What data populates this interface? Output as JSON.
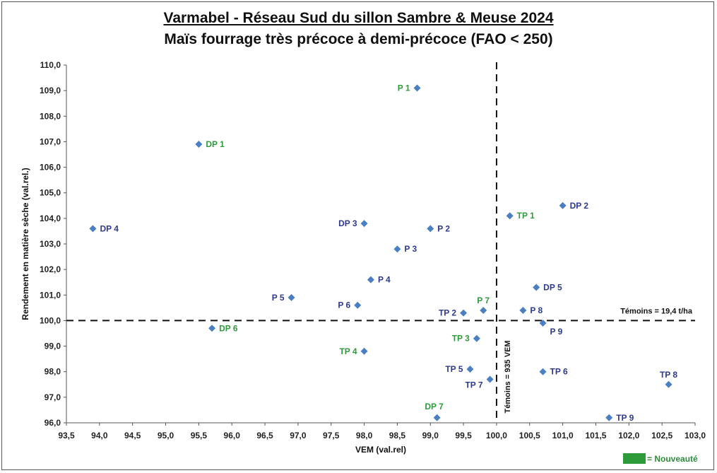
{
  "chart_data": {
    "type": "scatter",
    "title": "Varmabel - Réseau Sud du sillon Sambre & Meuse 2024",
    "subtitle": "Maïs fourrage très précoce à demi-précoce (FAO < 250)",
    "xlabel": "VEM (val.rel)",
    "ylabel": "Rendement en matière sèche (val.rel.)",
    "xlim": [
      93.5,
      103.0
    ],
    "ylim": [
      96.0,
      110.0
    ],
    "x_ticks": [
      "93,5",
      "94,0",
      "94,5",
      "95,0",
      "95,5",
      "96,0",
      "96,5",
      "97,0",
      "97,5",
      "98,0",
      "98,5",
      "99,0",
      "99,5",
      "100,0",
      "100,5",
      "101,0",
      "101,5",
      "102,0",
      "102,5",
      "103,0"
    ],
    "y_ticks": [
      "96,0",
      "97,0",
      "98,0",
      "99,0",
      "100,0",
      "101,0",
      "102,0",
      "103,0",
      "104,0",
      "105,0",
      "106,0",
      "107,0",
      "108,0",
      "109,0",
      "110,0"
    ],
    "grid": false,
    "reference_lines": {
      "x": 100.0,
      "y": 100.0,
      "x_label": "Témoins = 935 VEM",
      "y_label": "Témoins = 19,4 t/ha"
    },
    "marker_color": "#4a7fc1",
    "label_colors": {
      "existing": "#2e3a8c",
      "new": "#2e9b3a"
    },
    "points": [
      {
        "label": "P 1",
        "x": 98.8,
        "y": 109.1,
        "new": true,
        "side": "left"
      },
      {
        "label": "DP 1",
        "x": 95.5,
        "y": 106.9,
        "new": true,
        "side": "right"
      },
      {
        "label": "DP 2",
        "x": 101.0,
        "y": 104.5,
        "new": false,
        "side": "right"
      },
      {
        "label": "TP 1",
        "x": 100.2,
        "y": 104.1,
        "new": true,
        "side": "right"
      },
      {
        "label": "DP 4",
        "x": 93.9,
        "y": 103.6,
        "new": false,
        "side": "right"
      },
      {
        "label": "DP 3",
        "x": 98.0,
        "y": 103.8,
        "new": false,
        "side": "left"
      },
      {
        "label": "P 2",
        "x": 99.0,
        "y": 103.6,
        "new": false,
        "side": "right"
      },
      {
        "label": "P 3",
        "x": 98.5,
        "y": 102.8,
        "new": false,
        "side": "right"
      },
      {
        "label": "P 4",
        "x": 98.1,
        "y": 101.6,
        "new": false,
        "side": "right"
      },
      {
        "label": "DP 5",
        "x": 100.6,
        "y": 101.3,
        "new": false,
        "side": "right"
      },
      {
        "label": "P 5",
        "x": 96.9,
        "y": 100.9,
        "new": false,
        "side": "left"
      },
      {
        "label": "P 6",
        "x": 97.9,
        "y": 100.6,
        "new": false,
        "side": "left"
      },
      {
        "label": "P 7",
        "x": 99.8,
        "y": 100.4,
        "new": true,
        "side": "above"
      },
      {
        "label": "TP 2",
        "x": 99.5,
        "y": 100.3,
        "new": false,
        "side": "left"
      },
      {
        "label": "P 8",
        "x": 100.4,
        "y": 100.4,
        "new": false,
        "side": "right"
      },
      {
        "label": "P 9",
        "x": 100.7,
        "y": 99.9,
        "new": false,
        "side": "belowright"
      },
      {
        "label": "DP 6",
        "x": 95.7,
        "y": 99.7,
        "new": true,
        "side": "right"
      },
      {
        "label": "TP 3",
        "x": 99.7,
        "y": 99.3,
        "new": true,
        "side": "left"
      },
      {
        "label": "TP 4",
        "x": 98.0,
        "y": 98.8,
        "new": true,
        "side": "left"
      },
      {
        "label": "TP 5",
        "x": 99.6,
        "y": 98.1,
        "new": false,
        "side": "left"
      },
      {
        "label": "TP 6",
        "x": 100.7,
        "y": 98.0,
        "new": false,
        "side": "right"
      },
      {
        "label": "TP 7",
        "x": 99.9,
        "y": 97.7,
        "new": false,
        "side": "belowleft"
      },
      {
        "label": "TP 8",
        "x": 102.6,
        "y": 97.5,
        "new": false,
        "side": "above"
      },
      {
        "label": "DP 7",
        "x": 99.1,
        "y": 96.2,
        "new": true,
        "side": "aboveleft"
      },
      {
        "label": "TP 9",
        "x": 101.7,
        "y": 96.2,
        "new": false,
        "side": "right"
      }
    ],
    "legend": {
      "label": "= Nouveauté",
      "color": "#2e9b3a",
      "position": "bottom-right"
    }
  }
}
